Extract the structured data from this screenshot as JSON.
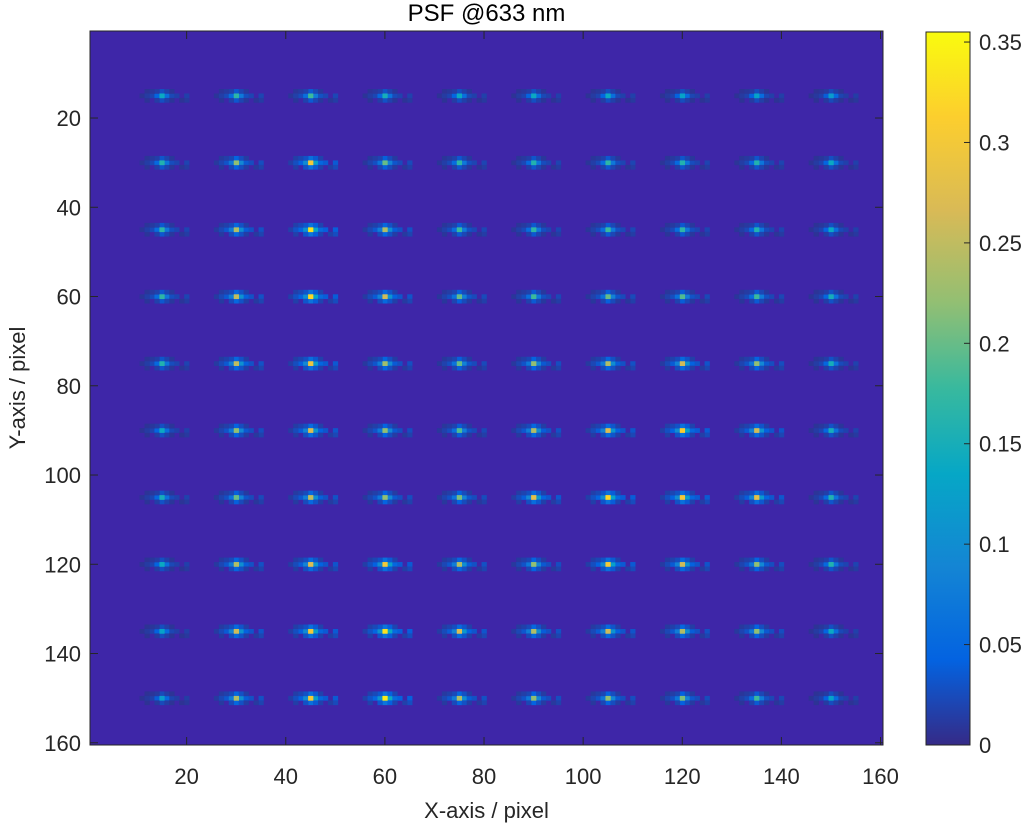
{
  "chart_data": {
    "type": "heatmap",
    "title": "PSF @633 nm",
    "xlabel": "X-axis / pixel",
    "ylabel": "Y-axis / pixel",
    "xlim": [
      0.5,
      160.5
    ],
    "ylim": [
      0.5,
      160.5
    ],
    "y_direction": "reverse",
    "xticks": [
      20,
      40,
      60,
      80,
      100,
      120,
      140,
      160
    ],
    "yticks": [
      20,
      40,
      60,
      80,
      100,
      120,
      140,
      160
    ],
    "colormap": "parula",
    "clim": [
      0,
      0.355
    ],
    "colorbar_ticks": [
      0,
      0.05,
      0.1,
      0.15,
      0.2,
      0.25,
      0.3,
      0.35
    ],
    "colorbar_location": "right",
    "grid": false,
    "spot_centers_x": [
      15,
      30,
      45,
      60,
      75,
      90,
      105,
      120,
      135,
      150
    ],
    "spot_centers_y": [
      15,
      30,
      45,
      60,
      75,
      90,
      105,
      120,
      135,
      150
    ],
    "peak_values": [
      [
        0.14,
        0.17,
        0.18,
        0.15,
        0.14,
        0.14,
        0.14,
        0.13,
        0.13,
        0.12
      ],
      [
        0.16,
        0.22,
        0.3,
        0.2,
        0.17,
        0.16,
        0.17,
        0.16,
        0.16,
        0.14
      ],
      [
        0.17,
        0.24,
        0.33,
        0.24,
        0.18,
        0.17,
        0.18,
        0.17,
        0.16,
        0.14
      ],
      [
        0.17,
        0.25,
        0.32,
        0.26,
        0.2,
        0.18,
        0.2,
        0.19,
        0.18,
        0.15
      ],
      [
        0.16,
        0.25,
        0.29,
        0.23,
        0.2,
        0.22,
        0.24,
        0.26,
        0.22,
        0.15
      ],
      [
        0.14,
        0.22,
        0.27,
        0.22,
        0.19,
        0.24,
        0.27,
        0.31,
        0.26,
        0.15
      ],
      [
        0.15,
        0.2,
        0.25,
        0.22,
        0.21,
        0.28,
        0.32,
        0.3,
        0.28,
        0.16
      ],
      [
        0.14,
        0.24,
        0.27,
        0.3,
        0.24,
        0.22,
        0.3,
        0.26,
        0.22,
        0.16
      ],
      [
        0.13,
        0.26,
        0.3,
        0.33,
        0.27,
        0.24,
        0.26,
        0.24,
        0.22,
        0.14
      ],
      [
        0.12,
        0.24,
        0.3,
        0.34,
        0.24,
        0.22,
        0.22,
        0.21,
        0.18,
        0.13
      ]
    ]
  }
}
